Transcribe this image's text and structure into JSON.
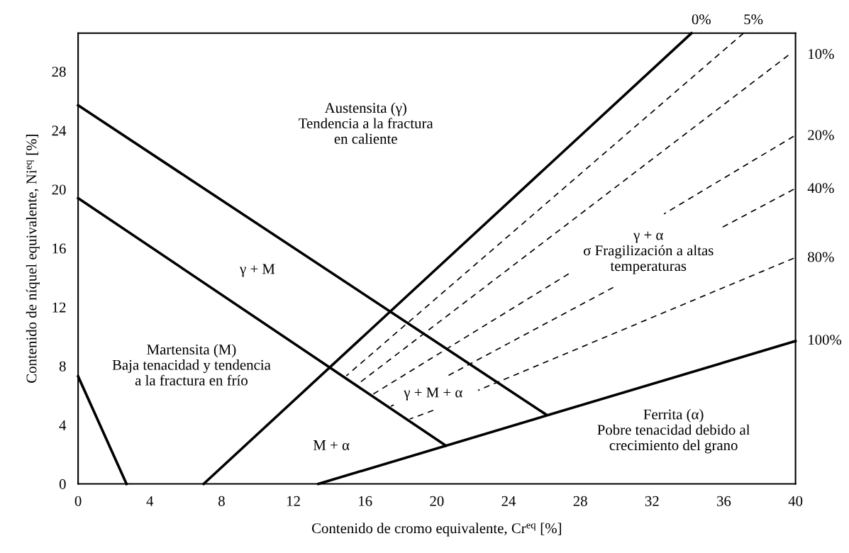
{
  "chart_data": {
    "type": "line",
    "xlabel": "Contenido de cromo equivalente, Cr$^{eq}$ [%]",
    "ylabel": "Contenido de níquel equivalente, Ni$^{eq}$ [%]",
    "xlim": [
      0,
      40
    ],
    "ylim": [
      0,
      30.6
    ],
    "xticks": [
      0,
      4,
      8,
      12,
      16,
      20,
      24,
      28,
      32,
      36,
      40
    ],
    "yticks": [
      0,
      4,
      8,
      12,
      16,
      20,
      24,
      28
    ],
    "grid": false,
    "legend": false,
    "marker": "none",
    "series": [
      {
        "x": [
          0,
          2.7
        ],
        "values": [
          7.3,
          0
        ],
        "color": "#000000",
        "line_style": "solid"
      },
      {
        "name": "0%",
        "x": [
          7.0,
          34.2
        ],
        "values": [
          0,
          30.6
        ],
        "color": "#000000",
        "line_style": "solid"
      },
      {
        "x": [
          0,
          26.1
        ],
        "values": [
          25.7,
          4.7
        ],
        "color": "#000000",
        "line_style": "solid"
      },
      {
        "x": [
          0,
          20.5
        ],
        "values": [
          19.4,
          2.6
        ],
        "color": "#000000",
        "line_style": "solid"
      },
      {
        "name": "100%",
        "x": [
          13.4,
          40
        ],
        "values": [
          0,
          9.7
        ],
        "color": "#000000",
        "line_style": "solid"
      },
      {
        "name": "5%",
        "x": [
          14.95,
          37.1
        ],
        "values": [
          7.33,
          30.6
        ],
        "color": "#000000",
        "line_style": "dashed"
      },
      {
        "name": "10%",
        "x": [
          15.6,
          39.6
        ],
        "values": [
          6.78,
          29.1
        ],
        "color": "#000000",
        "line_style": "dashed"
      },
      {
        "name": "20%",
        "x": [
          16.46,
          27.35,
          30,
          32.67,
          39.9
        ],
        "values": [
          6.1,
          14.26,
          null,
          18.33,
          23.6
        ],
        "color": "#000000",
        "line_style": "dashed"
      },
      {
        "name": "40%",
        "x": [
          17.44,
          17.6,
          19,
          20.6,
          29.84,
          33,
          35.9,
          39.9
        ],
        "values": [
          5.27,
          5.37,
          null,
          7.33,
          13.34,
          null,
          17.41,
          20.0
        ],
        "color": "#000000",
        "line_style": "dashed"
      },
      {
        "name": "80%",
        "x": [
          18.49,
          19.8,
          21,
          22.3,
          39.9
        ],
        "values": [
          4.4,
          4.99,
          null,
          6.35,
          15.32
        ],
        "color": "#000000",
        "line_style": "dashed"
      }
    ],
    "annotations": [
      "Austensita (γ)\nTendencia a la fractura\nen caliente",
      "γ + M",
      "Martensita (M)\nBaja tenacidad y tendencia\na la fractura en frío",
      "M + α",
      "γ + M + α",
      "γ + α\nσ Fragilización a altas\ntemperaturas",
      "Ferrita (α)\nPobre tenacidad debido al\ncrecimiento del grano"
    ]
  }
}
